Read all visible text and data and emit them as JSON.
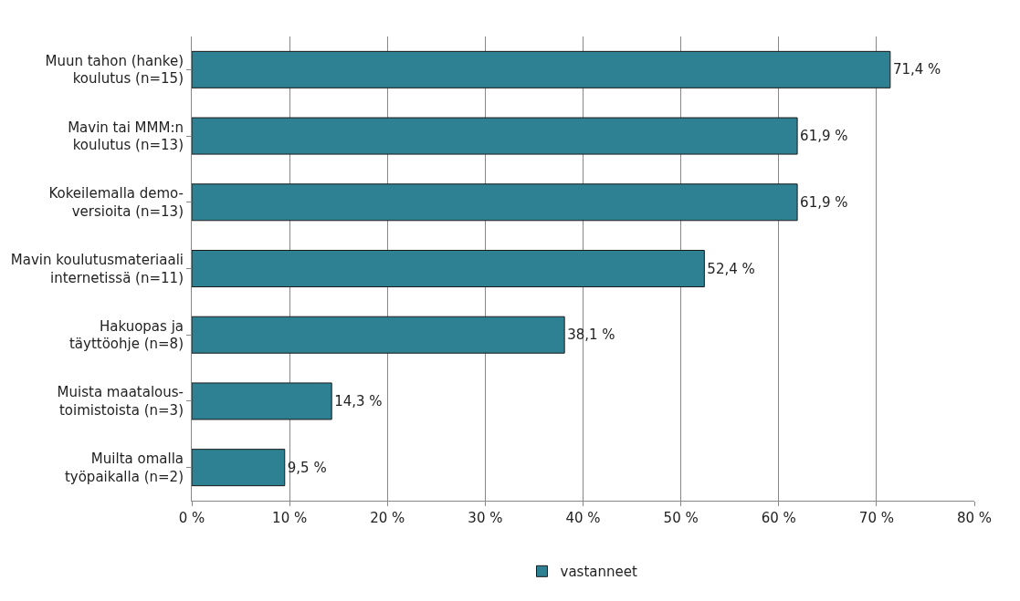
{
  "chart_data": {
    "type": "bar",
    "orientation": "horizontal",
    "categories": [
      "Muun tahon (hanke)\nkoulutus (n=15)",
      "Mavin tai MMM:n\nkoulutus (n=13)",
      "Kokeilemalla demo-\nversioita (n=13)",
      "Mavin koulutusmateriaali\ninternetissä (n=11)",
      "Hakuopas ja\ntäyttöohje (n=8)",
      "Muista maatalous-\ntoimistoista (n=3)",
      "Muilta omalla\ntyöpaikalla (n=2)"
    ],
    "series": [
      {
        "name": "vastanneet",
        "color": "#2e8093",
        "values": [
          71.4,
          61.9,
          61.9,
          52.4,
          38.1,
          14.3,
          9.5
        ],
        "value_labels": [
          "71,4 %",
          "61,9 %",
          "61,9 %",
          "52,4 %",
          "38,1 %",
          "14,3 %",
          "9,5 %"
        ]
      }
    ],
    "xlim": [
      0,
      80
    ],
    "xticks": [
      {
        "value": 0,
        "label": "0 %"
      },
      {
        "value": 10,
        "label": "10 %"
      },
      {
        "value": 20,
        "label": "20 %"
      },
      {
        "value": 30,
        "label": "30 %"
      },
      {
        "value": 40,
        "label": "40 %"
      },
      {
        "value": 50,
        "label": "50 %"
      },
      {
        "value": 60,
        "label": "60 %"
      },
      {
        "value": 70,
        "label": "70 %"
      },
      {
        "value": 80,
        "label": "80 %"
      }
    ],
    "grid": "x",
    "legend": "bottom"
  }
}
